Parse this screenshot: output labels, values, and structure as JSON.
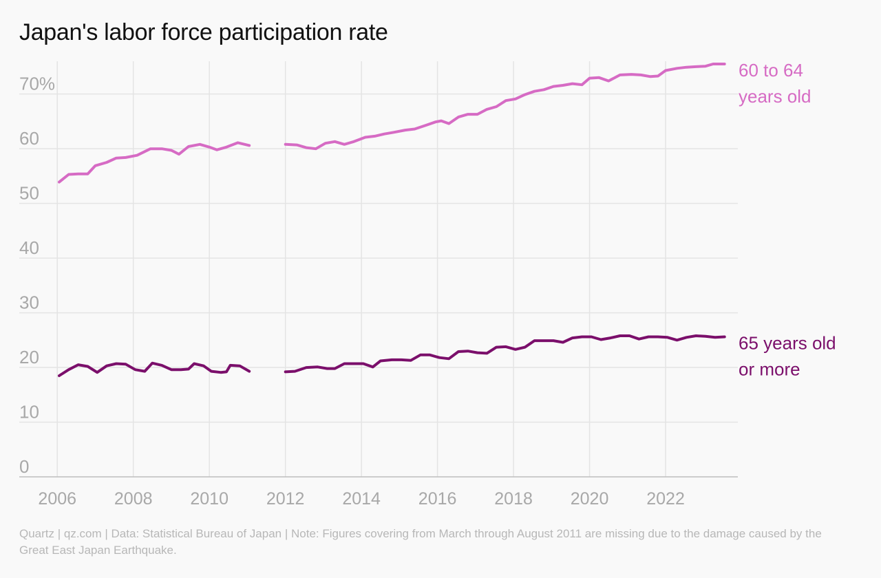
{
  "title": "Japan's labor force participation rate",
  "footer": "Quartz | qz.com | Data: Statistical Bureau of Japan | Note: Figures covering from March through August 2011 are missing due to the damage caused by the Great East Japan Earthquake.",
  "colors": {
    "series_60_64": "#d66bc4",
    "series_65_plus": "#7b0f6b",
    "grid": "#e4e4e4",
    "axis": "#bdbdbd",
    "tick_text": "#a8a8a8"
  },
  "chart_data": {
    "type": "line",
    "title": "Japan's labor force participation rate",
    "xlabel": "",
    "ylabel": "",
    "xlim": [
      2005.0,
      2023.9
    ],
    "ylim": [
      0,
      76
    ],
    "x_ticks": [
      2006,
      2008,
      2010,
      2012,
      2014,
      2016,
      2018,
      2020,
      2022
    ],
    "x_tick_labels": [
      "2006",
      "2008",
      "2010",
      "2012",
      "2014",
      "2016",
      "2018",
      "2020",
      "2022"
    ],
    "y_ticks": [
      0,
      10,
      20,
      30,
      40,
      50,
      60,
      70
    ],
    "y_tick_labels": [
      "0",
      "10",
      "20",
      "30",
      "40",
      "50",
      "60",
      "70%"
    ],
    "grid": true,
    "legend": "direct labels at right end of lines",
    "series": [
      {
        "name": "60 to 64 years old",
        "label_lines": [
          "60 to 64",
          "years old"
        ],
        "color": "#d66bc4",
        "segments": [
          [
            [
              2006.05,
              53.9
            ],
            [
              2006.3,
              55.3
            ],
            [
              2006.55,
              55.4
            ],
            [
              2006.8,
              55.4
            ],
            [
              2007.0,
              56.9
            ],
            [
              2007.3,
              57.5
            ],
            [
              2007.55,
              58.3
            ],
            [
              2007.8,
              58.4
            ],
            [
              2008.1,
              58.8
            ],
            [
              2008.45,
              60.0
            ],
            [
              2008.75,
              60.0
            ],
            [
              2009.0,
              59.7
            ],
            [
              2009.2,
              59.0
            ],
            [
              2009.45,
              60.4
            ],
            [
              2009.75,
              60.8
            ],
            [
              2010.0,
              60.3
            ],
            [
              2010.2,
              59.8
            ],
            [
              2010.45,
              60.3
            ],
            [
              2010.75,
              61.1
            ],
            [
              2011.05,
              60.6
            ]
          ],
          [
            [
              2012.0,
              60.8
            ],
            [
              2012.3,
              60.7
            ],
            [
              2012.55,
              60.2
            ],
            [
              2012.8,
              60.0
            ],
            [
              2013.05,
              61.0
            ],
            [
              2013.3,
              61.3
            ],
            [
              2013.55,
              60.8
            ],
            [
              2013.8,
              61.3
            ],
            [
              2014.1,
              62.1
            ],
            [
              2014.35,
              62.3
            ],
            [
              2014.6,
              62.7
            ],
            [
              2014.85,
              63.0
            ],
            [
              2015.15,
              63.4
            ],
            [
              2015.4,
              63.6
            ],
            [
              2015.7,
              64.3
            ],
            [
              2015.95,
              64.9
            ],
            [
              2016.1,
              65.1
            ],
            [
              2016.3,
              64.6
            ],
            [
              2016.55,
              65.8
            ],
            [
              2016.8,
              66.3
            ],
            [
              2017.05,
              66.3
            ],
            [
              2017.3,
              67.2
            ],
            [
              2017.55,
              67.7
            ],
            [
              2017.8,
              68.8
            ],
            [
              2018.05,
              69.1
            ],
            [
              2018.3,
              69.9
            ],
            [
              2018.55,
              70.5
            ],
            [
              2018.8,
              70.8
            ],
            [
              2019.05,
              71.4
            ],
            [
              2019.3,
              71.6
            ],
            [
              2019.55,
              71.9
            ],
            [
              2019.8,
              71.7
            ],
            [
              2020.0,
              72.9
            ],
            [
              2020.25,
              73.0
            ],
            [
              2020.5,
              72.4
            ],
            [
              2020.8,
              73.5
            ],
            [
              2021.1,
              73.6
            ],
            [
              2021.35,
              73.5
            ],
            [
              2021.6,
              73.2
            ],
            [
              2021.8,
              73.3
            ],
            [
              2022.0,
              74.3
            ],
            [
              2022.3,
              74.7
            ],
            [
              2022.55,
              74.9
            ],
            [
              2022.8,
              75.0
            ],
            [
              2023.05,
              75.1
            ],
            [
              2023.25,
              75.5
            ],
            [
              2023.55,
              75.5
            ]
          ]
        ]
      },
      {
        "name": "65 years old or more",
        "label_lines": [
          "65 years old",
          "or more"
        ],
        "color": "#7b0f6b",
        "segments": [
          [
            [
              2006.05,
              18.5
            ],
            [
              2006.3,
              19.6
            ],
            [
              2006.55,
              20.5
            ],
            [
              2006.8,
              20.2
            ],
            [
              2007.05,
              19.1
            ],
            [
              2007.3,
              20.3
            ],
            [
              2007.55,
              20.7
            ],
            [
              2007.8,
              20.6
            ],
            [
              2008.05,
              19.6
            ],
            [
              2008.3,
              19.3
            ],
            [
              2008.5,
              20.8
            ],
            [
              2008.75,
              20.4
            ],
            [
              2009.0,
              19.6
            ],
            [
              2009.25,
              19.6
            ],
            [
              2009.45,
              19.7
            ],
            [
              2009.6,
              20.7
            ],
            [
              2009.85,
              20.3
            ],
            [
              2010.05,
              19.3
            ],
            [
              2010.3,
              19.1
            ],
            [
              2010.45,
              19.2
            ],
            [
              2010.55,
              20.4
            ],
            [
              2010.8,
              20.3
            ],
            [
              2011.05,
              19.3
            ]
          ],
          [
            [
              2012.0,
              19.2
            ],
            [
              2012.25,
              19.3
            ],
            [
              2012.55,
              20.0
            ],
            [
              2012.85,
              20.1
            ],
            [
              2013.1,
              19.8
            ],
            [
              2013.3,
              19.8
            ],
            [
              2013.55,
              20.7
            ],
            [
              2013.8,
              20.7
            ],
            [
              2014.05,
              20.7
            ],
            [
              2014.3,
              20.1
            ],
            [
              2014.5,
              21.2
            ],
            [
              2014.8,
              21.4
            ],
            [
              2015.05,
              21.4
            ],
            [
              2015.3,
              21.3
            ],
            [
              2015.55,
              22.3
            ],
            [
              2015.8,
              22.3
            ],
            [
              2016.05,
              21.8
            ],
            [
              2016.3,
              21.6
            ],
            [
              2016.55,
              22.9
            ],
            [
              2016.8,
              23.0
            ],
            [
              2017.05,
              22.7
            ],
            [
              2017.3,
              22.6
            ],
            [
              2017.55,
              23.7
            ],
            [
              2017.8,
              23.8
            ],
            [
              2018.05,
              23.3
            ],
            [
              2018.3,
              23.7
            ],
            [
              2018.55,
              24.9
            ],
            [
              2018.8,
              24.9
            ],
            [
              2019.05,
              24.9
            ],
            [
              2019.3,
              24.6
            ],
            [
              2019.55,
              25.4
            ],
            [
              2019.8,
              25.6
            ],
            [
              2020.05,
              25.6
            ],
            [
              2020.3,
              25.1
            ],
            [
              2020.55,
              25.4
            ],
            [
              2020.8,
              25.8
            ],
            [
              2021.05,
              25.8
            ],
            [
              2021.3,
              25.2
            ],
            [
              2021.55,
              25.6
            ],
            [
              2021.8,
              25.6
            ],
            [
              2022.05,
              25.5
            ],
            [
              2022.3,
              25.0
            ],
            [
              2022.55,
              25.5
            ],
            [
              2022.8,
              25.8
            ],
            [
              2023.05,
              25.7
            ],
            [
              2023.3,
              25.5
            ],
            [
              2023.55,
              25.6
            ]
          ]
        ]
      }
    ]
  }
}
